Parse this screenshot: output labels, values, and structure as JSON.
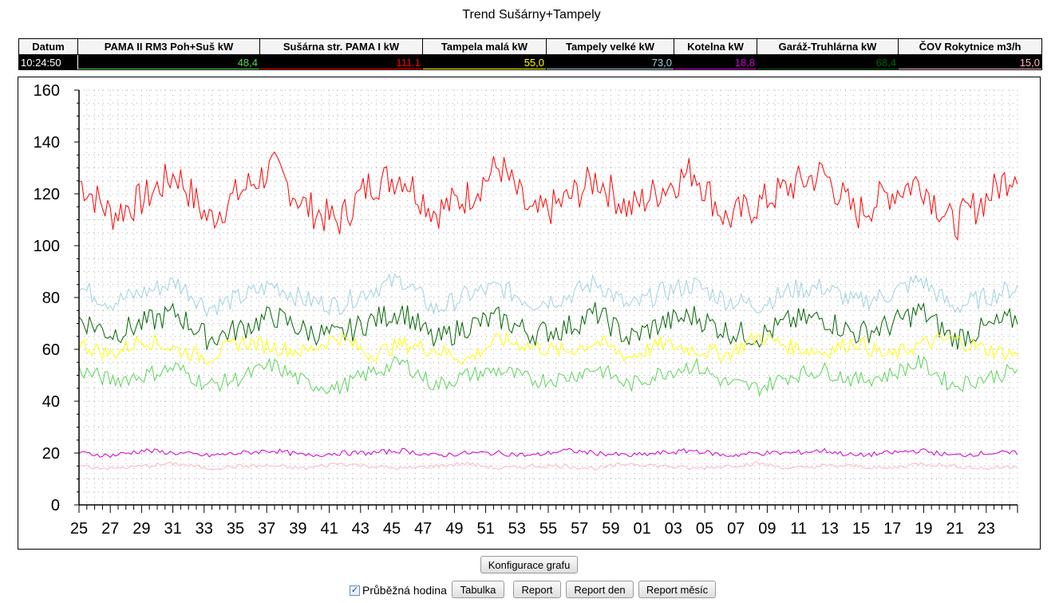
{
  "title": "Trend Sušárny+Tampely",
  "legend": {
    "date_header": "Datum",
    "time": "10:24:50",
    "columns": [
      {
        "label": "PAMA II RM3 Poh+Suš kW",
        "value": "48,4",
        "color": "#5ad35a"
      },
      {
        "label": "Sušárna str. PAMA I kW",
        "value": "111,1",
        "color": "#ff0000"
      },
      {
        "label": "Tampela malá kW",
        "value": "55,0",
        "color": "#ffff00"
      },
      {
        "label": "Tampely velké kW",
        "value": "73,0",
        "color": "#9fd0e0"
      },
      {
        "label": "Kotelna kW",
        "value": "18,8",
        "color": "#cc00cc"
      },
      {
        "label": "Garáž-Truhlárna kW",
        "value": "68,4",
        "color": "#006400"
      },
      {
        "label": "ČOV Rokytnice m3/h",
        "value": "15,0",
        "color": "#ffb6c1"
      }
    ]
  },
  "chart_data": {
    "type": "line",
    "ylim": [
      0,
      160
    ],
    "y_ticks": [
      "0",
      "20",
      "40",
      "60",
      "80",
      "100",
      "120",
      "140",
      "160"
    ],
    "x_ticks": [
      "25",
      "27",
      "29",
      "31",
      "33",
      "35",
      "37",
      "39",
      "41",
      "43",
      "45",
      "47",
      "49",
      "51",
      "53",
      "55",
      "57",
      "59",
      "01",
      "03",
      "05",
      "07",
      "09",
      "11",
      "13",
      "15",
      "17",
      "19",
      "21",
      "23"
    ],
    "grid": true,
    "series": [
      {
        "name": "Sušárna str. PAMA I kW",
        "color": "#ff0000",
        "mean": 120,
        "amplitude": 9,
        "values": [
          125,
          112,
          118,
          128,
          110,
          121,
          130,
          115,
          109,
          124,
          127,
          113,
          119,
          131,
          111,
          117,
          126,
          114,
          122,
          129,
          110,
          116,
          123,
          128,
          112,
          120,
          125,
          108,
          118,
          130
        ]
      },
      {
        "name": "Tampely velké kW",
        "color": "#9fd0e0",
        "mean": 80,
        "amplitude": 5,
        "values": [
          84,
          78,
          82,
          86,
          76,
          80,
          85,
          79,
          77,
          83,
          87,
          75,
          81,
          84,
          78,
          80,
          86,
          76,
          82,
          85,
          79,
          77,
          83,
          84,
          78,
          81,
          87,
          76,
          80,
          84
        ]
      },
      {
        "name": "Garáž-Truhlárna kW",
        "color": "#006400",
        "mean": 69,
        "amplitude": 6,
        "values": [
          72,
          66,
          70,
          74,
          64,
          68,
          73,
          67,
          65,
          71,
          75,
          63,
          69,
          72,
          66,
          68,
          74,
          64,
          70,
          73,
          67,
          65,
          71,
          72,
          66,
          69,
          75,
          64,
          68,
          72
        ]
      },
      {
        "name": "Tampela malá kW",
        "color": "#ffff00",
        "mean": 61,
        "amplitude": 4,
        "values": [
          62,
          58,
          64,
          60,
          57,
          63,
          61,
          59,
          65,
          58,
          62,
          60,
          56,
          64,
          61,
          59,
          63,
          57,
          62,
          60,
          58,
          65,
          61,
          59,
          63,
          57,
          62,
          64,
          60,
          58
        ]
      },
      {
        "name": "PAMA II RM3 Poh+Suš kW",
        "color": "#5ad35a",
        "mean": 50,
        "amplitude": 4,
        "values": [
          52,
          48,
          50,
          53,
          46,
          49,
          54,
          47,
          45,
          51,
          55,
          46,
          50,
          52,
          48,
          49,
          53,
          46,
          51,
          54,
          47,
          45,
          50,
          52,
          48,
          50,
          55,
          46,
          49,
          52
        ]
      },
      {
        "name": "Kotelna kW",
        "color": "#cc00cc",
        "mean": 20,
        "amplitude": 1.2,
        "values": [
          20,
          19,
          21,
          20,
          19,
          20,
          21,
          19,
          20,
          20,
          21,
          19,
          20,
          20,
          19,
          21,
          20,
          19,
          20,
          21,
          19,
          20,
          20,
          21,
          19,
          20,
          21,
          19,
          20,
          20
        ]
      },
      {
        "name": "ČOV Rokytnice m3/h",
        "color": "#ffb6c1",
        "mean": 15,
        "amplitude": 1,
        "values": [
          15,
          14,
          15,
          16,
          14,
          15,
          15,
          14,
          16,
          15,
          14,
          15,
          16,
          14,
          15,
          15,
          14,
          16,
          15,
          14,
          15,
          16,
          14,
          15,
          15,
          14,
          16,
          15,
          14,
          15
        ]
      }
    ]
  },
  "buttons": {
    "config": "Konfigurace grafu",
    "table": "Tabulka",
    "report": "Report",
    "report_day": "Report den",
    "report_month": "Report měsíc"
  },
  "checkbox": {
    "label": "Průběžná hodina",
    "checked": true
  }
}
